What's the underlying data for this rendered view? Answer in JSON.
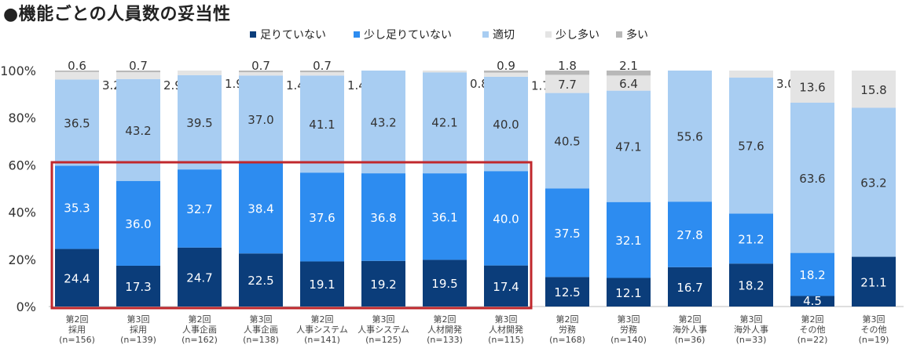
{
  "title": "●機能ごとの人員数の妥当性",
  "chart_data": {
    "type": "bar",
    "stacked": true,
    "percent": true,
    "categories": [
      [
        "第2回",
        "採用",
        "(n=156)"
      ],
      [
        "第3回",
        "採用",
        "(n=139)"
      ],
      [
        "第2回",
        "人事企画",
        "(n=162)"
      ],
      [
        "第3回",
        "人事企画",
        "(n=138)"
      ],
      [
        "第2回",
        "人事システム",
        "(n=141)"
      ],
      [
        "第3回",
        "人事システム",
        "(n=125)"
      ],
      [
        "第2回",
        "人材開発",
        "(n=133)"
      ],
      [
        "第3回",
        "人材開発",
        "(n=115)"
      ],
      [
        "第2回",
        "労務",
        "(n=168)"
      ],
      [
        "第3回",
        "労務",
        "(n=140)"
      ],
      [
        "第2回",
        "海外人事",
        "(n=36)"
      ],
      [
        "第3回",
        "海外人事",
        "(n=33)"
      ],
      [
        "第2回",
        "その他",
        "(n=22)"
      ],
      [
        "第3回",
        "その他",
        "(n=19)"
      ]
    ],
    "series": [
      {
        "name": "足りていない",
        "color": "#0b3d7a",
        "values": [
          24.4,
          17.3,
          24.7,
          22.5,
          19.1,
          19.2,
          19.5,
          17.4,
          12.5,
          12.1,
          16.7,
          18.2,
          4.5,
          21.1
        ]
      },
      {
        "name": "少し足りていない",
        "color": "#2d8cf0",
        "values": [
          35.3,
          36.0,
          32.7,
          38.4,
          37.6,
          36.8,
          36.1,
          40.0,
          37.5,
          32.1,
          27.8,
          21.2,
          18.2,
          null
        ]
      },
      {
        "name": "適切",
        "color": "#a8cdf2",
        "values": [
          36.5,
          43.2,
          39.5,
          37.0,
          41.1,
          43.2,
          42.1,
          40.0,
          40.5,
          47.1,
          55.6,
          57.6,
          63.6,
          63.2
        ]
      },
      {
        "name": "少し多い",
        "color": "#e4e4e4",
        "values": [
          3.2,
          2.9,
          1.9,
          1.4,
          1.4,
          null,
          0.8,
          1.7,
          7.7,
          6.4,
          null,
          3.0,
          13.6,
          15.8
        ]
      },
      {
        "name": "多い",
        "color": "#b8b8b8",
        "values": [
          0.6,
          0.7,
          null,
          0.7,
          0.7,
          null,
          null,
          0.9,
          1.8,
          2.1,
          null,
          null,
          null,
          null
        ]
      }
    ],
    "yticks": [
      "0%",
      "20%",
      "40%",
      "60%",
      "80%",
      "100%"
    ],
    "ylim": [
      0,
      100
    ],
    "highlight": {
      "from_category": 0,
      "to_category": 7,
      "color": "#c0282d"
    },
    "legend_position": "top"
  }
}
